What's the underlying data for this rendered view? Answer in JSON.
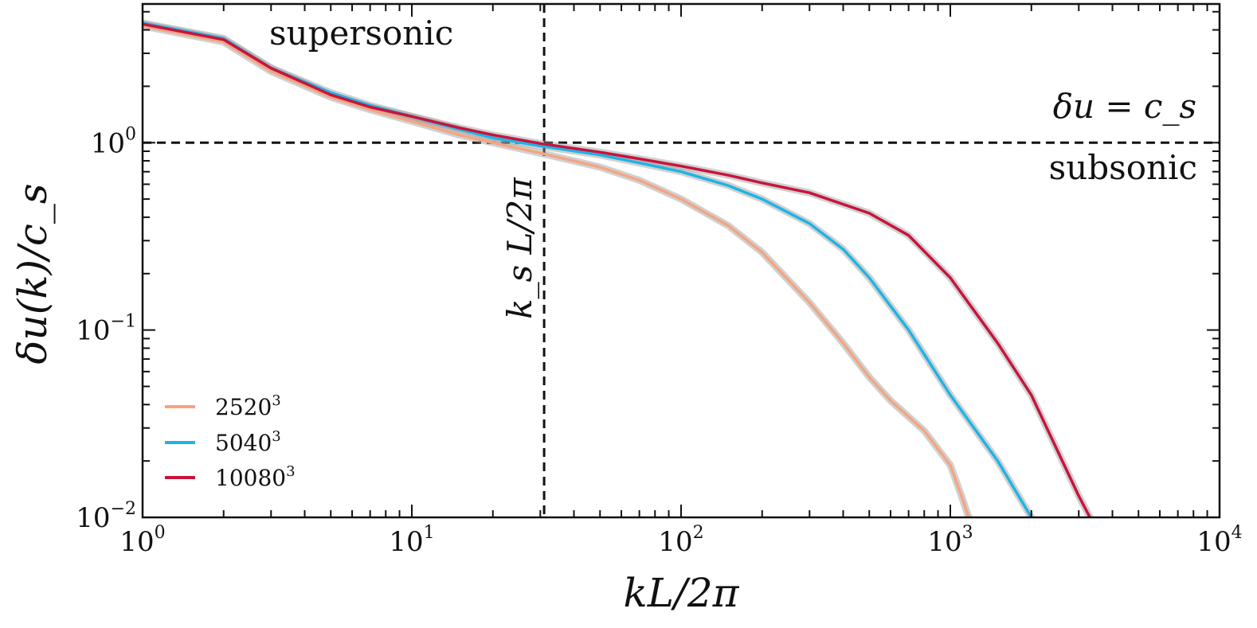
{
  "chart_data": {
    "type": "line",
    "title": "",
    "xlabel": "kL/2π",
    "ylabel": "δu(k)/c_s",
    "xscale": "log",
    "yscale": "log",
    "xlim": [
      1,
      10000
    ],
    "ylim": [
      0.01,
      5.5
    ],
    "x_ticks": [
      {
        "value": 1,
        "base": "10",
        "exp": "0"
      },
      {
        "value": 10,
        "base": "10",
        "exp": "1"
      },
      {
        "value": 100,
        "base": "10",
        "exp": "2"
      },
      {
        "value": 1000,
        "base": "10",
        "exp": "3"
      },
      {
        "value": 10000,
        "base": "10",
        "exp": "4"
      }
    ],
    "y_ticks": [
      {
        "value": 1,
        "base": "10",
        "exp": "0"
      },
      {
        "value": 0.1,
        "base": "10",
        "exp": "−1"
      },
      {
        "value": 0.01,
        "base": "10",
        "exp": "−2"
      }
    ],
    "reference_lines": [
      {
        "orientation": "horizontal",
        "value": 1.0,
        "style": "dashed",
        "label": "δu = c_s"
      },
      {
        "orientation": "vertical",
        "value": 31,
        "style": "dashed",
        "label": "k_s L/2π"
      }
    ],
    "annotations": [
      {
        "text": "supersonic",
        "placement": "top-left"
      },
      {
        "text": "subsonic",
        "placement": "right, below δu = c_s line"
      }
    ],
    "legend": {
      "placement": "lower-left"
    },
    "series": [
      {
        "name": "2520",
        "name_exp": "3",
        "color": "#F4A582",
        "x": [
          1,
          2,
          3,
          5,
          7,
          10,
          15,
          20,
          30,
          50,
          70,
          100,
          150,
          200,
          300,
          400,
          500,
          600,
          800,
          1000,
          1100,
          1200
        ],
        "y": [
          4.2,
          3.45,
          2.4,
          1.75,
          1.5,
          1.3,
          1.1,
          1.0,
          0.88,
          0.74,
          0.63,
          0.5,
          0.36,
          0.26,
          0.14,
          0.085,
          0.056,
          0.042,
          0.029,
          0.019,
          0.013,
          0.009
        ]
      },
      {
        "name": "5040",
        "name_exp": "3",
        "color": "#1EB4E6",
        "x": [
          1,
          2,
          3,
          5,
          7,
          10,
          15,
          20,
          30,
          50,
          70,
          100,
          150,
          200,
          300,
          400,
          500,
          700,
          1000,
          1500,
          2000
        ],
        "y": [
          4.35,
          3.6,
          2.5,
          1.85,
          1.58,
          1.38,
          1.18,
          1.06,
          0.96,
          0.86,
          0.78,
          0.7,
          0.59,
          0.5,
          0.37,
          0.27,
          0.19,
          0.1,
          0.045,
          0.02,
          0.01
        ]
      },
      {
        "name": "10080",
        "name_exp": "3",
        "color": "#C8143C",
        "x": [
          1,
          2,
          3,
          5,
          7,
          10,
          15,
          20,
          30,
          50,
          70,
          100,
          150,
          200,
          300,
          500,
          700,
          1000,
          1500,
          2000,
          3000,
          3300
        ],
        "y": [
          4.3,
          3.55,
          2.5,
          1.8,
          1.55,
          1.38,
          1.2,
          1.1,
          0.99,
          0.89,
          0.82,
          0.75,
          0.67,
          0.61,
          0.54,
          0.42,
          0.32,
          0.19,
          0.085,
          0.045,
          0.013,
          0.01
        ]
      }
    ]
  }
}
